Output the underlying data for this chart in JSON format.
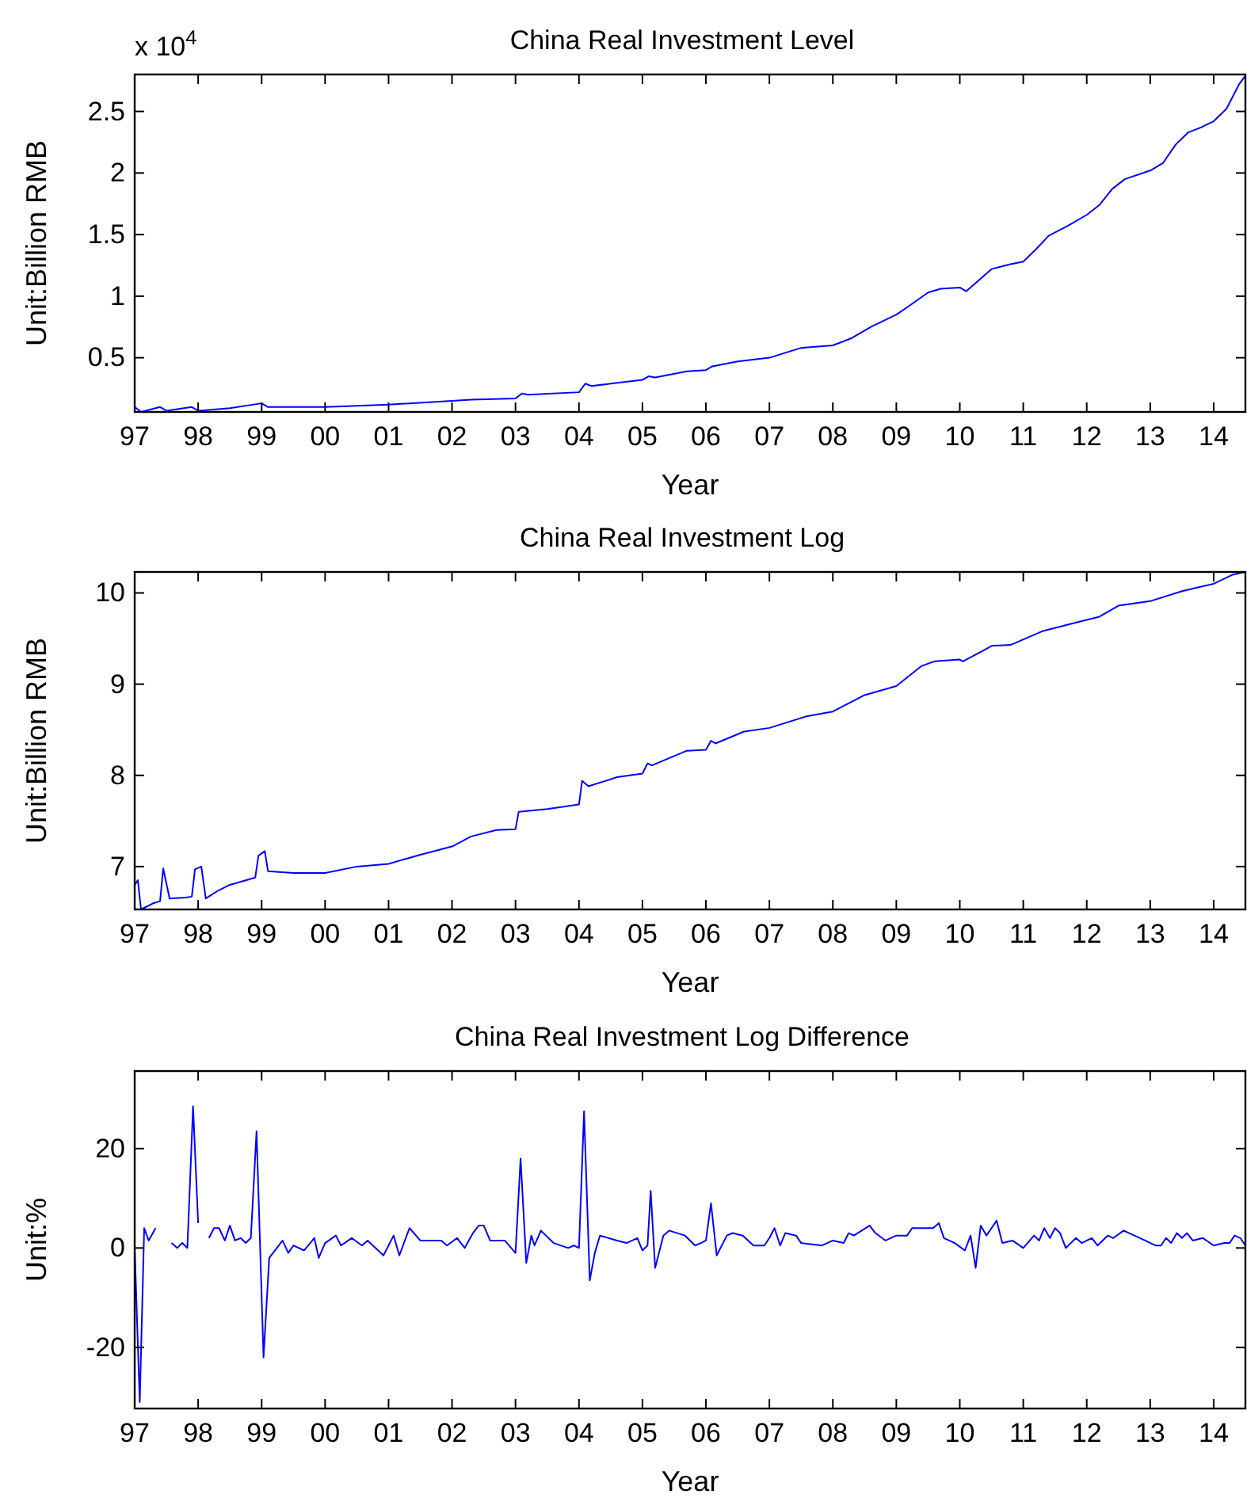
{
  "chart_data": [
    {
      "type": "line",
      "title": "China Real Investment Level",
      "xlabel": "Year",
      "ylabel": "Unit:Billion RMB",
      "annotations": [
        "x 10$^{4}$"
      ],
      "xlim": [
        1997,
        2014.5
      ],
      "xticks": [
        {
          "value": 1997,
          "label": "97"
        },
        {
          "value": 1998,
          "label": "98"
        },
        {
          "value": 1999,
          "label": "99"
        },
        {
          "value": 2000,
          "label": "00"
        },
        {
          "value": 2001,
          "label": "01"
        },
        {
          "value": 2002,
          "label": "02"
        },
        {
          "value": 2003,
          "label": "03"
        },
        {
          "value": 2004,
          "label": "04"
        },
        {
          "value": 2005,
          "label": "05"
        },
        {
          "value": 2006,
          "label": "06"
        },
        {
          "value": 2007,
          "label": "07"
        },
        {
          "value": 2008,
          "label": "08"
        },
        {
          "value": 2009,
          "label": "09"
        },
        {
          "value": 2010,
          "label": "10"
        },
        {
          "value": 2011,
          "label": "11"
        },
        {
          "value": 2012,
          "label": "12"
        },
        {
          "value": 2013,
          "label": "13"
        },
        {
          "value": 2014,
          "label": "14"
        }
      ],
      "ylim": [
        0.06,
        2.8
      ],
      "yticks": [
        0.5,
        1,
        1.5,
        2,
        2.5
      ],
      "series": [
        {
          "color": "#0000ff",
          "x": [
            1997,
            1997.1,
            1997.4,
            1997.5,
            1997.9,
            1998,
            1998.5,
            1999,
            1999.1,
            2000,
            2000.5,
            2001,
            2001.7,
            2002.3,
            2003,
            2003.1,
            2003.2,
            2004,
            2004.1,
            2004.2,
            2004.5,
            2005,
            2005.1,
            2005.2,
            2005.7,
            2006,
            2006.1,
            2006.5,
            2007,
            2007.5,
            2008,
            2008.3,
            2008.6,
            2009,
            2009.2,
            2009.5,
            2009.7,
            2010,
            2010.1,
            2010.3,
            2010.5,
            2010.8,
            2011,
            2011.2,
            2011.4,
            2011.7,
            2012,
            2012.2,
            2012.4,
            2012.6,
            2013,
            2013.2,
            2013.4,
            2013.6,
            2013.8,
            2014,
            2014.2,
            2014.4,
            2014.5
          ],
          "values": [
            0.1,
            0.06,
            0.1,
            0.07,
            0.1,
            0.07,
            0.09,
            0.13,
            0.1,
            0.1,
            0.11,
            0.12,
            0.14,
            0.16,
            0.17,
            0.21,
            0.2,
            0.22,
            0.29,
            0.27,
            0.29,
            0.32,
            0.35,
            0.34,
            0.39,
            0.4,
            0.43,
            0.47,
            0.5,
            0.58,
            0.6,
            0.66,
            0.75,
            0.85,
            0.92,
            1.03,
            1.06,
            1.07,
            1.04,
            1.13,
            1.22,
            1.26,
            1.28,
            1.38,
            1.49,
            1.57,
            1.66,
            1.74,
            1.87,
            1.95,
            2.02,
            2.08,
            2.23,
            2.33,
            2.37,
            2.42,
            2.52,
            2.72,
            2.79
          ]
        }
      ]
    },
    {
      "type": "line",
      "title": "China Real Investment Log",
      "xlabel": "Year",
      "ylabel": "Unit:Billion RMB",
      "xlim": [
        1997,
        2014.5
      ],
      "xticks": [
        {
          "value": 1997,
          "label": "97"
        },
        {
          "value": 1998,
          "label": "98"
        },
        {
          "value": 1999,
          "label": "99"
        },
        {
          "value": 2000,
          "label": "00"
        },
        {
          "value": 2001,
          "label": "01"
        },
        {
          "value": 2002,
          "label": "02"
        },
        {
          "value": 2003,
          "label": "03"
        },
        {
          "value": 2004,
          "label": "04"
        },
        {
          "value": 2005,
          "label": "05"
        },
        {
          "value": 2006,
          "label": "06"
        },
        {
          "value": 2007,
          "label": "07"
        },
        {
          "value": 2008,
          "label": "08"
        },
        {
          "value": 2009,
          "label": "09"
        },
        {
          "value": 2010,
          "label": "10"
        },
        {
          "value": 2011,
          "label": "11"
        },
        {
          "value": 2012,
          "label": "12"
        },
        {
          "value": 2013,
          "label": "13"
        },
        {
          "value": 2014,
          "label": "14"
        }
      ],
      "ylim": [
        6.53,
        10.23
      ],
      "yticks": [
        7,
        8,
        9,
        10
      ],
      "series": [
        {
          "color": "#0000ff",
          "x": [
            1997,
            1997.05,
            1997.1,
            1997.3,
            1997.4,
            1997.45,
            1997.55,
            1997.8,
            1997.9,
            1997.95,
            1998.05,
            1998.12,
            1998.3,
            1998.5,
            1998.9,
            1998.95,
            1999.05,
            1999.1,
            1999.5,
            2000,
            2000.5,
            2001,
            2001.5,
            2002,
            2002.3,
            2002.7,
            2003,
            2003.05,
            2003.5,
            2004,
            2004.05,
            2004.15,
            2004.6,
            2005,
            2005.08,
            2005.15,
            2005.7,
            2006,
            2006.08,
            2006.15,
            2006.6,
            2007,
            2007.6,
            2008,
            2008.5,
            2009,
            2009.4,
            2009.6,
            2010,
            2010.05,
            2010.4,
            2010.5,
            2010.8,
            2011.3,
            2011.8,
            2012.2,
            2012.5,
            2013,
            2013.5,
            2014,
            2014.3,
            2014.5
          ],
          "values": [
            6.8,
            6.85,
            6.53,
            6.6,
            6.62,
            6.98,
            6.65,
            6.66,
            6.67,
            6.97,
            7.0,
            6.65,
            6.73,
            6.8,
            6.88,
            7.12,
            7.17,
            6.95,
            6.93,
            6.93,
            7.0,
            7.03,
            7.13,
            7.22,
            7.33,
            7.4,
            7.41,
            7.6,
            7.63,
            7.68,
            7.94,
            7.88,
            7.98,
            8.02,
            8.13,
            8.11,
            8.27,
            8.28,
            8.38,
            8.35,
            8.48,
            8.52,
            8.65,
            8.7,
            8.88,
            8.98,
            9.2,
            9.25,
            9.27,
            9.25,
            9.38,
            9.42,
            9.43,
            9.58,
            9.67,
            9.74,
            9.86,
            9.91,
            10.02,
            10.1,
            10.2,
            10.23
          ]
        }
      ]
    },
    {
      "type": "line",
      "title": "China Real Investment Log Difference",
      "xlabel": "Year",
      "ylabel": "Unit:%",
      "xlim": [
        1997,
        2014.5
      ],
      "xticks": [
        {
          "value": 1997,
          "label": "97"
        },
        {
          "value": 1998,
          "label": "98"
        },
        {
          "value": 1999,
          "label": "99"
        },
        {
          "value": 2000,
          "label": "00"
        },
        {
          "value": 2001,
          "label": "01"
        },
        {
          "value": 2002,
          "label": "02"
        },
        {
          "value": 2003,
          "label": "03"
        },
        {
          "value": 2004,
          "label": "04"
        },
        {
          "value": 2005,
          "label": "05"
        },
        {
          "value": 2006,
          "label": "06"
        },
        {
          "value": 2007,
          "label": "07"
        },
        {
          "value": 2008,
          "label": "08"
        },
        {
          "value": 2009,
          "label": "09"
        },
        {
          "value": 2010,
          "label": "10"
        },
        {
          "value": 2011,
          "label": "11"
        },
        {
          "value": 2012,
          "label": "12"
        },
        {
          "value": 2013,
          "label": "13"
        },
        {
          "value": 2014,
          "label": "14"
        }
      ],
      "ylim": [
        -32.3,
        35.6
      ],
      "yticks": [
        -20,
        0,
        20
      ],
      "series": [
        {
          "color": "#0000ff",
          "x": [
            1997,
            1997.08,
            1997.15,
            1997.22,
            1997.33,
            1997.42,
            1997.5,
            1997.58,
            1997.67,
            1997.75,
            1997.83,
            1997.92,
            1998,
            1998.08,
            1998.17,
            1998.25,
            1998.33,
            1998.42,
            1998.5,
            1998.58,
            1998.67,
            1998.75,
            1998.83,
            1998.92,
            1999.03,
            1999.12,
            1999.33,
            1999.42,
            1999.5,
            1999.67,
            1999.83,
            1999.9,
            2000,
            2000.17,
            2000.25,
            2000.42,
            2000.58,
            2000.67,
            2000.92,
            2001.08,
            2001.17,
            2001.33,
            2001.5,
            2001.83,
            2001.92,
            2002.08,
            2002.2,
            2002.33,
            2002.42,
            2002.5,
            2002.6,
            2002.83,
            2003,
            2003.08,
            2003.17,
            2003.25,
            2003.3,
            2003.4,
            2003.6,
            2003.83,
            2003.92,
            2004,
            2004.08,
            2004.17,
            2004.25,
            2004.33,
            2004.6,
            2004.75,
            2004.92,
            2005,
            2005.08,
            2005.13,
            2005.2,
            2005.33,
            2005.42,
            2005.67,
            2005.83,
            2005.92,
            2006,
            2006.08,
            2006.17,
            2006.33,
            2006.42,
            2006.58,
            2006.75,
            2006.92,
            2007,
            2007.08,
            2007.17,
            2007.25,
            2007.42,
            2007.5,
            2007.83,
            2008,
            2008.17,
            2008.25,
            2008.33,
            2008.58,
            2008.67,
            2008.83,
            2009,
            2009.17,
            2009.25,
            2009.58,
            2009.67,
            2009.75,
            2009.92,
            2010.08,
            2010.17,
            2010.25,
            2010.33,
            2010.42,
            2010.5,
            2010.58,
            2010.67,
            2010.83,
            2011,
            2011.17,
            2011.25,
            2011.33,
            2011.42,
            2011.5,
            2011.58,
            2011.67,
            2011.83,
            2011.92,
            2012.08,
            2012.17,
            2012.33,
            2012.42,
            2012.58,
            2012.75,
            2012.92,
            2013.08,
            2013.17,
            2013.25,
            2013.33,
            2013.42,
            2013.5,
            2013.58,
            2013.67,
            2013.83,
            2014,
            2014.17,
            2014.25,
            2014.33,
            2014.42,
            2014.5
          ],
          "values": [
            0,
            -31,
            4,
            1.5,
            4,
            null,
            null,
            1,
            0,
            1,
            0,
            28.5,
            5,
            null,
            2,
            4,
            4,
            1.5,
            4.5,
            1.5,
            2,
            1,
            2,
            23.5,
            -22,
            -2,
            1.5,
            -1,
            0.5,
            -0.5,
            2,
            -2,
            1,
            2.5,
            0.5,
            2,
            0.5,
            1.5,
            -1.5,
            2.5,
            -1.5,
            4,
            1.5,
            1.5,
            0.5,
            2,
            0,
            3,
            4.5,
            4.5,
            1.5,
            1.5,
            -1,
            18,
            -3,
            2.5,
            0.5,
            3.5,
            1,
            0,
            0.5,
            0,
            27.5,
            -6.5,
            -1,
            2.5,
            1.5,
            1,
            2,
            -0.5,
            0.5,
            11.5,
            -4,
            2.5,
            3.5,
            2.5,
            0.5,
            1,
            1.5,
            9,
            -1.5,
            2.5,
            3,
            2.5,
            0.5,
            0.5,
            2,
            4,
            0.5,
            3,
            2.5,
            1,
            0.5,
            1.5,
            1,
            3,
            2.5,
            4.5,
            3,
            1.5,
            2.5,
            2.5,
            4,
            4,
            5,
            2,
            1,
            -0.5,
            2.5,
            -4,
            4.5,
            2.5,
            4,
            5.5,
            1,
            1.5,
            0,
            2.5,
            1.5,
            4,
            2,
            4,
            3,
            0,
            2,
            1,
            2,
            0.5,
            2.5,
            2,
            3.5,
            2.5,
            1.5,
            0.5,
            0.5,
            2,
            1,
            3,
            2,
            3,
            1.5,
            2,
            0.5,
            1,
            1,
            2.5,
            2,
            0.5
          ]
        }
      ]
    }
  ]
}
